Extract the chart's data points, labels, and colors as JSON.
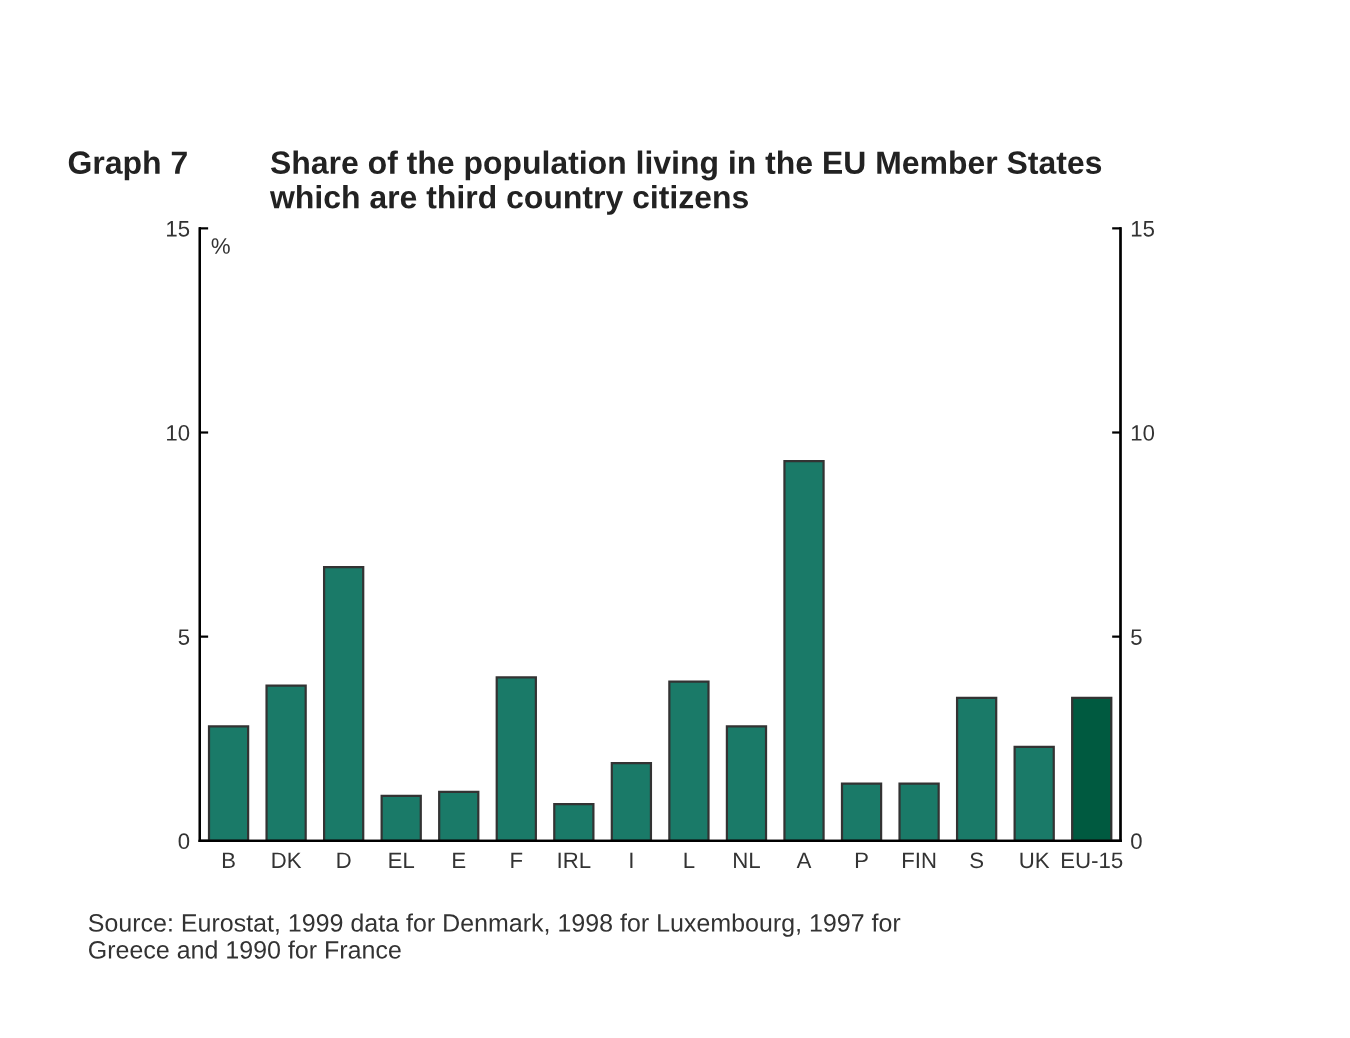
{
  "chart_data": {
    "type": "bar",
    "title": "Graph 7",
    "subtitle": "Share of the population living in the EU Member States which are third country citizens",
    "ylabel": "%",
    "categories": [
      "B",
      "DK",
      "D",
      "EL",
      "E",
      "F",
      "IRL",
      "I",
      "L",
      "NL",
      "A",
      "P",
      "FIN",
      "S",
      "UK",
      "EU-15"
    ],
    "values": [
      2.8,
      3.8,
      6.7,
      1.1,
      1.2,
      4.0,
      0.9,
      1.9,
      3.9,
      2.8,
      9.3,
      1.4,
      1.4,
      3.5,
      2.3,
      3.5
    ],
    "colors": [
      "#1a7a68",
      "#1a7a68",
      "#1a7a68",
      "#1a7a68",
      "#1a7a68",
      "#1a7a68",
      "#1a7a68",
      "#1a7a68",
      "#1a7a68",
      "#1a7a68",
      "#1a7a68",
      "#1a7a68",
      "#1a7a68",
      "#1a7a68",
      "#1a7a68",
      "#005a40"
    ],
    "ylim": [
      0,
      15
    ],
    "yticks": [
      0,
      5,
      10,
      15
    ],
    "y2lim": [
      0,
      15
    ],
    "y2ticks": [
      0,
      5,
      10,
      15
    ],
    "grid": false,
    "legend": false,
    "annotations": [
      "Source: Eurostat, 1999 data for Denmark, 1998 for Luxembourg, 1997 for Greece and 1990 for France"
    ]
  }
}
